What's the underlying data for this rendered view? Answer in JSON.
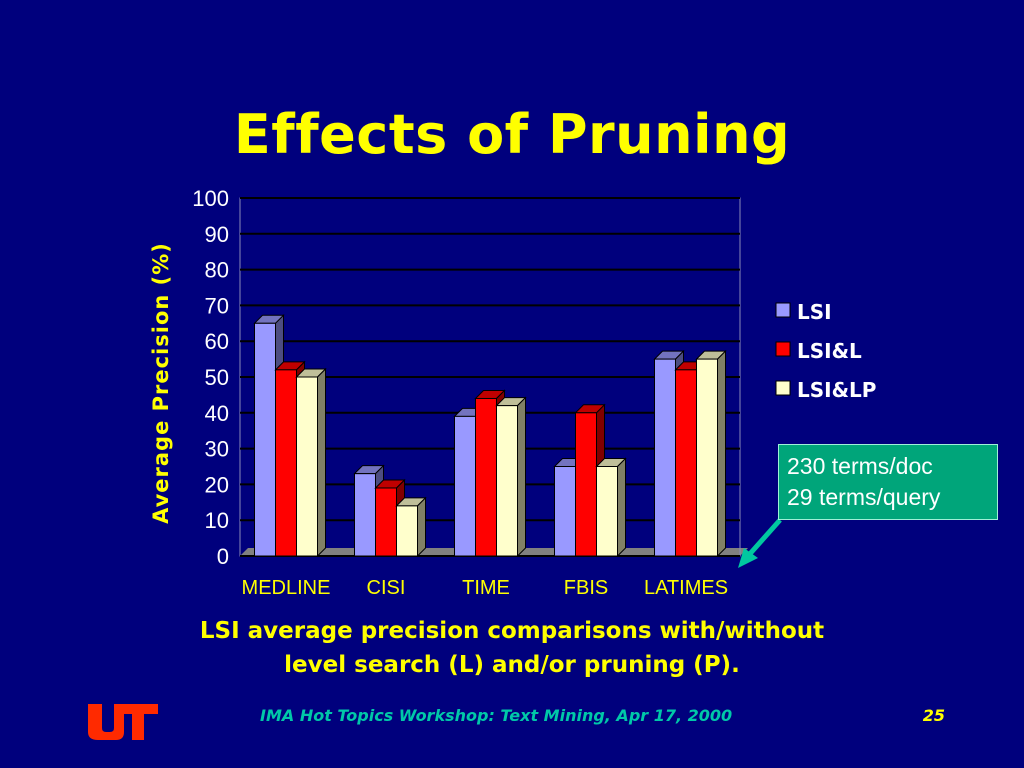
{
  "slide": {
    "title": "Effects of Pruning",
    "caption_line1": "LSI average precision comparisons with/without",
    "caption_line2": "level search (L) and/or pruning (P).",
    "callout_line1": "230 terms/doc",
    "callout_line2": "29 terms/query",
    "footer": "IMA Hot Topics Workshop: Text Mining, Apr 17, 2000",
    "page_number": "25",
    "logo_text": "UT"
  },
  "colors": {
    "background": "#00007d",
    "title": "#ffff00",
    "callout": "#00a57a",
    "footer": "#00c8a8"
  },
  "chart_data": {
    "type": "bar",
    "title": "",
    "xlabel": "",
    "ylabel": "Average Precision (%)",
    "ylim": [
      0,
      100
    ],
    "yticks": [
      0,
      10,
      20,
      30,
      40,
      50,
      60,
      70,
      80,
      90,
      100
    ],
    "grid": true,
    "style": "3d-clustered",
    "legend_position": "right",
    "categories": [
      "MEDLINE",
      "CISI",
      "TIME",
      "FBIS",
      "LATIMES"
    ],
    "series": [
      {
        "name": "LSI",
        "color": "#9999ff",
        "values": [
          65,
          23,
          39,
          25,
          55
        ]
      },
      {
        "name": "LSI&L",
        "color": "#ff0000",
        "values": [
          52,
          19,
          44,
          40,
          52
        ]
      },
      {
        "name": "LSI&LP",
        "color": "#ffffcc",
        "values": [
          50,
          14,
          42,
          25,
          55
        ]
      }
    ]
  }
}
